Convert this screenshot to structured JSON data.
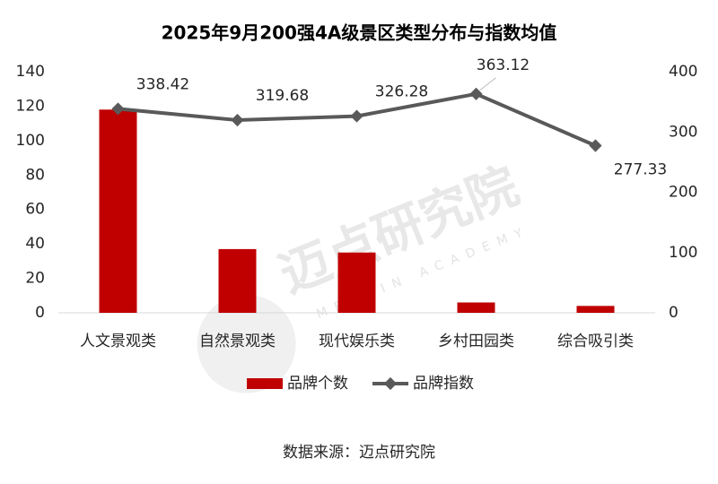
{
  "chart_data": {
    "type": "bar_line",
    "title": "2025年9月200强4A级景区类型分布与指数均值",
    "categories": [
      "人文景观类",
      "自然景观类",
      "现代娱乐类",
      "乡村田园类",
      "综合吸引类"
    ],
    "series": [
      {
        "name": "品牌个数",
        "type": "bar",
        "color": "#c00000",
        "values": [
          118,
          37,
          35,
          6,
          4
        ]
      },
      {
        "name": "品牌指数",
        "type": "line",
        "axis": "y2",
        "color": "#595959",
        "values": [
          338.42,
          319.68,
          326.28,
          363.12,
          277.33
        ]
      }
    ],
    "ylim": [
      0,
      140
    ],
    "yticks": [
      0,
      20,
      40,
      60,
      80,
      100,
      120,
      140
    ],
    "y2lim": [
      0,
      400
    ],
    "y2ticks": [
      0,
      100,
      200,
      300,
      400
    ],
    "legend": "bottom",
    "source": "数据来源：迈点研究院",
    "watermark": "迈点研究院",
    "watermark_en": "MEADIN ACADEMY"
  }
}
